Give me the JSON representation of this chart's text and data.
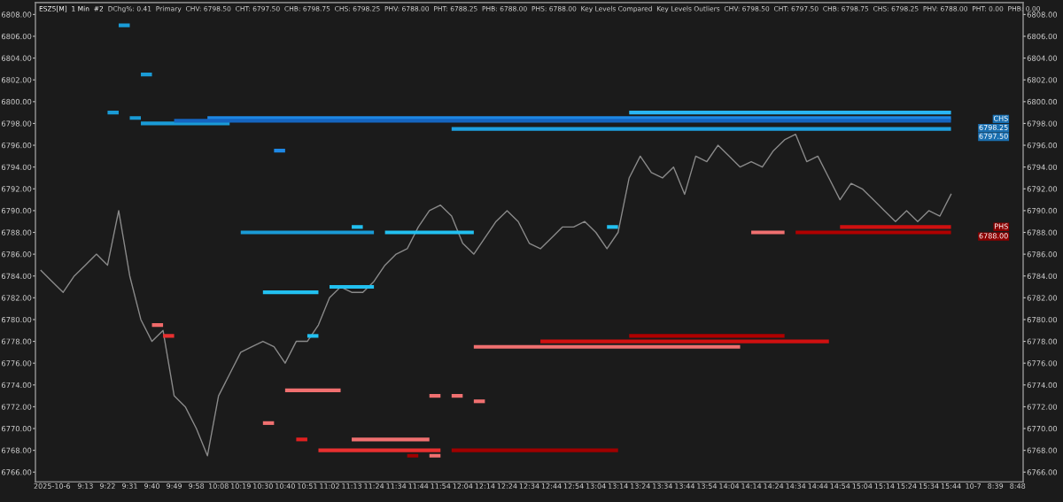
{
  "chart_data": {
    "type": "line",
    "title": "ESZ5[M]  1 Min  #2",
    "subtitle": "DChg%: 0.41  Primary  CHV: 6798.50  CHT: 6797.50  CHB: 6798.75  CHS: 6798.25  PHV: 6788.00  PHT: 6788.25  PHB: 6788.00  PHS: 6788.00  Key Levels Compared  Key Levels Outliers  CHV: 6798.50  CHT: 6797.50  CHB: 6798.75  CHS: 6798.25  PHV: 6788.00  PHT: 0.00  PHB: 0.00",
    "categories": [
      null,
      "2025-10-6",
      null,
      null,
      "9:13",
      null,
      "9:22",
      null,
      "9:31",
      null,
      "9:40",
      null,
      "9:49",
      null,
      "9:58",
      null,
      "10:08",
      null,
      "10:19",
      null,
      "10:30",
      null,
      "10:40",
      null,
      "10:51",
      null,
      "11:02",
      null,
      "11:13",
      null,
      "11:24",
      null,
      "11:34",
      null,
      "11:44",
      null,
      "11:54",
      null,
      "12:04",
      null,
      "12:14",
      null,
      "12:24",
      null,
      "12:34",
      null,
      "12:44",
      null,
      "12:54",
      null,
      "13:04",
      null,
      "13:14",
      null,
      "13:24",
      null,
      "13:34",
      null,
      "13:44",
      null,
      "13:54",
      null,
      "14:04",
      null,
      "14:14",
      null,
      "14:24",
      null,
      "14:34",
      null,
      "14:44",
      null,
      "14:54",
      null,
      "15:04",
      null,
      "15:14",
      null,
      "15:24",
      null,
      "15:34",
      null,
      "15:44",
      null,
      "10-7",
      null,
      "8:39",
      null,
      "8:48"
    ],
    "ylim": [
      6765.1,
      6809.1
    ],
    "y2lim": [
      6765.1,
      6809.1
    ],
    "yticks": [
      {
        "value": 6766,
        "label": "6766.00"
      },
      {
        "value": 6768,
        "label": "6768.00"
      },
      {
        "value": 6770,
        "label": "6770.00"
      },
      {
        "value": 6772,
        "label": "6772.00"
      },
      {
        "value": 6774,
        "label": "6774.00"
      },
      {
        "value": 6776,
        "label": "6776.00"
      },
      {
        "value": 6778,
        "label": "6778.00"
      },
      {
        "value": 6780,
        "label": "6780.00"
      },
      {
        "value": 6782,
        "label": "6782.00"
      },
      {
        "value": 6784,
        "label": "6784.00"
      },
      {
        "value": 6786,
        "label": "6786.00"
      },
      {
        "value": 6788,
        "label": "6788.00"
      },
      {
        "value": 6790,
        "label": "6790.00"
      },
      {
        "value": 6792,
        "label": "6792.00"
      },
      {
        "value": 6794,
        "label": "6794.00"
      },
      {
        "value": 6796,
        "label": "6796.00"
      },
      {
        "value": 6798,
        "label": "6798.00"
      },
      {
        "value": 6800,
        "label": "6800.00"
      },
      {
        "value": 6802,
        "label": "6802.00"
      },
      {
        "value": 6804,
        "label": "6804.00"
      },
      {
        "value": 6806,
        "label": "6806.00"
      },
      {
        "value": 6808,
        "label": "6808.00"
      }
    ],
    "y2ticks": [
      {
        "value": 6766,
        "label": "6766.00"
      },
      {
        "value": 6768,
        "label": "6768.00"
      },
      {
        "value": 6770,
        "label": "6770.00"
      },
      {
        "value": 6772,
        "label": "6772.00"
      },
      {
        "value": 6774,
        "label": "6774.00"
      },
      {
        "value": 6776,
        "label": "6776.00"
      },
      {
        "value": 6778,
        "label": "6778.00"
      },
      {
        "value": 6780,
        "label": "6780.00"
      },
      {
        "value": 6782,
        "label": "6782.00"
      },
      {
        "value": 6784,
        "label": "6784.00"
      },
      {
        "value": 6786,
        "label": "6786.00"
      },
      {
        "value": 6788,
        "label": "6788.00"
      },
      {
        "value": 6790,
        "label": "6790.00"
      },
      {
        "value": 6792,
        "label": "6792.00"
      },
      {
        "value": 6794,
        "label": "6794.00"
      },
      {
        "value": 6796,
        "label": "6796.00"
      },
      {
        "value": 6798,
        "label": "6798.00"
      },
      {
        "value": 6800,
        "label": "6800.00"
      },
      {
        "value": 6802,
        "label": "6802.00"
      },
      {
        "value": 6804,
        "label": "6804.00"
      },
      {
        "value": 6806,
        "label": "6806.00"
      },
      {
        "value": 6808,
        "label": "6808.00"
      }
    ],
    "grid": false,
    "annotations": [
      "CHS",
      "6798.25",
      "6797.50",
      "PHS",
      "6788.00"
    ],
    "series": [
      {
        "color": "#8a8a8a",
        "values": [
          6784.5,
          6783.5,
          6782.5,
          6784,
          6785,
          6786,
          6785,
          6790,
          6784,
          6780,
          6778,
          6779,
          6773,
          6772,
          6770,
          6767.5,
          6773,
          6775,
          6777,
          6777.5,
          6778,
          6777.5,
          6776,
          6778,
          6778,
          6779.5,
          6782,
          6783,
          6782.5,
          6782.5,
          6783.5,
          6785,
          6786,
          6786.5,
          6788.5,
          6790,
          6790.5,
          6789.5,
          6787,
          6786,
          6787.5,
          6789,
          6790,
          6789,
          6787,
          6786.5,
          6787.5,
          6788.5,
          6788.5,
          6789,
          6788,
          6786.5,
          6788,
          6793,
          6795,
          6793.5,
          6793,
          6794,
          6791.5,
          6795,
          6794.5,
          6796,
          6795,
          6794,
          6794.5,
          6794,
          6795.5,
          6796.5,
          6797,
          6794.5,
          6795,
          6793,
          6791,
          6792.5,
          6792,
          6791,
          6790,
          6789,
          6790,
          6789,
          6790,
          6789.5,
          6791.5,
          null,
          null,
          null,
          null,
          null,
          null
        ]
      },
      {
        "type": "step",
        "color": "#1a9bd6",
        "values": [
          null,
          null,
          null,
          null,
          null,
          null,
          null,
          6807,
          6807,
          6798,
          6798,
          6798,
          6798,
          6798,
          6798,
          6798,
          6798,
          6798,
          6788,
          6788,
          6788,
          6788,
          6788,
          6788,
          6788,
          6788,
          6788,
          6788,
          6788,
          6788,
          6788,
          null,
          null,
          null,
          null,
          null,
          null,
          null,
          null,
          null,
          null,
          null,
          null,
          null,
          null,
          null,
          null,
          null,
          null,
          null,
          null,
          null,
          null,
          null,
          null,
          null,
          null,
          null,
          null,
          null,
          null,
          null,
          null,
          null,
          null,
          null,
          null,
          null,
          null,
          null,
          null,
          null,
          null,
          null,
          null,
          null,
          null,
          null,
          null,
          null,
          null,
          null,
          null,
          null,
          null,
          null,
          null,
          null,
          null
        ]
      },
      {
        "type": "step",
        "color": "#1a9bd6",
        "values": [
          null,
          null,
          null,
          null,
          null,
          null,
          6799,
          6799,
          null,
          6802.5,
          6802.5,
          null,
          null,
          null,
          null,
          null,
          null,
          null,
          null,
          null,
          null,
          null,
          null,
          null,
          null,
          null,
          null,
          null,
          null,
          null,
          null,
          null,
          null,
          null,
          null,
          null,
          null,
          null,
          null,
          null,
          null,
          null,
          null,
          null,
          null,
          null,
          null,
          null,
          null,
          null,
          null,
          null,
          null,
          null,
          null,
          null,
          null,
          null,
          null,
          null,
          null,
          null,
          null,
          null,
          null,
          null,
          null,
          null,
          null,
          null,
          null,
          null,
          null,
          null,
          null,
          null,
          null,
          null,
          null,
          null,
          null,
          null,
          null,
          null,
          null,
          null,
          null,
          null,
          null
        ]
      },
      {
        "type": "step",
        "color": "#1a9bd6",
        "values": [
          null,
          null,
          null,
          null,
          null,
          null,
          null,
          null,
          6798.5,
          6798.5,
          null,
          null,
          null,
          null,
          null,
          null,
          null,
          null,
          null,
          null,
          null,
          null,
          null,
          null,
          null,
          null,
          null,
          null,
          null,
          null,
          null,
          null,
          null,
          null,
          null,
          null,
          null,
          null,
          null,
          null,
          null,
          null,
          null,
          null,
          null,
          null,
          null,
          null,
          null,
          null,
          null,
          null,
          null,
          null,
          null,
          null,
          null,
          null,
          null,
          null,
          null,
          null,
          null,
          null,
          null,
          null,
          null,
          null,
          null,
          null,
          null,
          null,
          null,
          null,
          null,
          null,
          null,
          null,
          null,
          null,
          null,
          null,
          null,
          null,
          null,
          null,
          null,
          null,
          null
        ]
      },
      {
        "type": "step",
        "color": "#22c0f0",
        "values": [
          null,
          null,
          null,
          null,
          null,
          null,
          null,
          null,
          null,
          null,
          null,
          null,
          null,
          null,
          null,
          null,
          null,
          null,
          null,
          null,
          6782.5,
          6782.5,
          6782.5,
          6782.5,
          6782.5,
          6782.5,
          6783,
          6783,
          6783,
          6783,
          6783,
          6788,
          6788,
          6788,
          6788,
          6788,
          6788,
          6788,
          6788,
          6788,
          null,
          null,
          null,
          null,
          null,
          null,
          null,
          null,
          null,
          null,
          null,
          6788.5,
          6788.5,
          null,
          null,
          null,
          null,
          null,
          null,
          null,
          null,
          null,
          null,
          null,
          null,
          null,
          null,
          null,
          null,
          null,
          null,
          null,
          null,
          null,
          null,
          null,
          null,
          null,
          null,
          null,
          null,
          null,
          null,
          null,
          null,
          null,
          null,
          null,
          null
        ]
      },
      {
        "type": "step",
        "color": "#22c0f0",
        "values": [
          null,
          null,
          null,
          null,
          null,
          null,
          null,
          null,
          null,
          null,
          null,
          null,
          null,
          null,
          null,
          null,
          null,
          null,
          null,
          null,
          null,
          null,
          null,
          null,
          6778.5,
          6778.5,
          null,
          null,
          6788.5,
          6788.5,
          null,
          null,
          null,
          null,
          null,
          null,
          null,
          null,
          null,
          null,
          null,
          null,
          null,
          null,
          null,
          null,
          null,
          null,
          null,
          null,
          null,
          null,
          null,
          null,
          null,
          null,
          null,
          null,
          null,
          null,
          null,
          null,
          null,
          null,
          null,
          null,
          null,
          null,
          null,
          null,
          null,
          null,
          null,
          null,
          null,
          null,
          null,
          null,
          null,
          null,
          null,
          null,
          null,
          null,
          null,
          null,
          null,
          null,
          null
        ]
      },
      {
        "type": "step",
        "color": "#1e88e5",
        "values": [
          null,
          null,
          null,
          null,
          null,
          null,
          null,
          null,
          null,
          null,
          null,
          null,
          null,
          null,
          null,
          6798.5,
          6798.5,
          6798.5,
          6798.5,
          6798.5,
          6798.5,
          6798.5,
          6798.5,
          6798.5,
          6798.5,
          6798.5,
          6798.5,
          6798.5,
          6798.5,
          6798.5,
          6798.5,
          6798.5,
          6798.5,
          6798.5,
          6798.5,
          6798.5,
          6798.5,
          6798.5,
          6798.5,
          6798.5,
          6798.5,
          6798.5,
          6798.5,
          6798.5,
          6798.5,
          6798.5,
          6798.5,
          6798.5,
          6798.5,
          6798.5,
          6798.5,
          6798.5,
          6798.5,
          6798.5,
          6798.5,
          6798.5,
          6798.5,
          6798.5,
          6798.5,
          6798.5,
          6798.5,
          6798.5,
          6798.5,
          6798.5,
          6798.5,
          6798.5,
          6798.5,
          6798.5,
          6798.5,
          6798.5,
          6798.5,
          6798.5,
          6798.5,
          6798.5,
          6798.5,
          6798.5,
          6798.5,
          6798.5,
          6798.5,
          6798.5,
          6798.5,
          6798.5,
          6798.5,
          null,
          null,
          null,
          null,
          null,
          null
        ]
      },
      {
        "type": "step",
        "color": "#1e88e5",
        "values": [
          null,
          null,
          null,
          null,
          null,
          null,
          null,
          null,
          null,
          null,
          null,
          null,
          null,
          null,
          null,
          null,
          null,
          null,
          null,
          null,
          null,
          6795.5,
          6795.5,
          null,
          null,
          null,
          null,
          null,
          null,
          null,
          null,
          null,
          null,
          null,
          null,
          null,
          null,
          null,
          null,
          null,
          null,
          null,
          null,
          null,
          null,
          null,
          null,
          null,
          null,
          null,
          null,
          null,
          null,
          null,
          null,
          null,
          null,
          null,
          null,
          null,
          null,
          null,
          null,
          null,
          null,
          null,
          null,
          null,
          null,
          null,
          null,
          null,
          null,
          null,
          null,
          null,
          null,
          null,
          null,
          null,
          null,
          null,
          null,
          null,
          null,
          null,
          null,
          null,
          null
        ]
      },
      {
        "type": "step",
        "color": "#1565c0",
        "values": [
          null,
          null,
          null,
          null,
          null,
          null,
          null,
          null,
          null,
          null,
          null,
          null,
          6798.25,
          6798.25,
          6798.25,
          6798.25,
          6798.25,
          6798.25,
          6798.25,
          6798.25,
          6798.25,
          6798.25,
          6798.25,
          6798.25,
          6798.25,
          6798.25,
          6798.25,
          6798.25,
          6798.25,
          6798.25,
          6798.25,
          6798.25,
          6798.25,
          6798.25,
          6798.25,
          6798.25,
          6798.25,
          6798.25,
          6798.25,
          6798.25,
          6798.25,
          6798.25,
          6798.25,
          6798.25,
          6798.25,
          6798.25,
          6798.25,
          6798.25,
          6798.25,
          6798.25,
          6798.25,
          6798.25,
          6798.25,
          6798.25,
          6798.25,
          6798.25,
          6798.25,
          6798.25,
          6798.25,
          6798.25,
          6798.25,
          6798.25,
          6798.25,
          6798.25,
          6798.25,
          6798.25,
          6798.25,
          6798.25,
          6798.25,
          6798.25,
          6798.25,
          6798.25,
          6798.25,
          6798.25,
          6798.25,
          6798.25,
          6798.25,
          6798.25,
          6798.25,
          6798.25,
          6798.25,
          6798.25,
          6798.25,
          null,
          null,
          null,
          null,
          null,
          null
        ]
      },
      {
        "type": "step",
        "color": "#1ea0e0",
        "values": [
          null,
          null,
          null,
          null,
          null,
          null,
          null,
          null,
          null,
          null,
          null,
          null,
          null,
          null,
          null,
          null,
          null,
          null,
          null,
          null,
          null,
          null,
          null,
          null,
          null,
          null,
          null,
          null,
          null,
          null,
          null,
          null,
          null,
          null,
          null,
          null,
          null,
          6797.5,
          6797.5,
          6797.5,
          6797.5,
          6797.5,
          6797.5,
          6797.5,
          6797.5,
          6797.5,
          6797.5,
          6797.5,
          6797.5,
          6797.5,
          6797.5,
          6797.5,
          6797.5,
          6797.5,
          6797.5,
          6797.5,
          6797.5,
          6797.5,
          6797.5,
          6797.5,
          6797.5,
          6797.5,
          6797.5,
          6797.5,
          6797.5,
          6797.5,
          6797.5,
          6797.5,
          6797.5,
          6797.5,
          6797.5,
          6797.5,
          6797.5,
          6797.5,
          6797.5,
          6797.5,
          6797.5,
          6797.5,
          6797.5,
          6797.5,
          6797.5,
          6797.5,
          6797.5,
          null,
          null,
          null,
          null,
          null,
          null
        ]
      },
      {
        "type": "step",
        "color": "#29b6f6",
        "values": [
          null,
          null,
          null,
          null,
          null,
          null,
          null,
          null,
          null,
          null,
          null,
          null,
          null,
          null,
          null,
          null,
          null,
          null,
          null,
          null,
          null,
          null,
          null,
          null,
          null,
          null,
          null,
          null,
          null,
          null,
          null,
          null,
          null,
          null,
          null,
          null,
          null,
          null,
          null,
          null,
          null,
          null,
          null,
          null,
          null,
          null,
          null,
          null,
          null,
          null,
          null,
          null,
          null,
          6799,
          6799,
          6799,
          6799,
          6799,
          6799,
          6799,
          6799,
          6799,
          6799,
          6799,
          6799,
          6799,
          6799,
          6799,
          6799,
          6799,
          6799,
          6799,
          6799,
          6799,
          6799,
          6799,
          6799,
          6799,
          6799,
          6799,
          6799,
          6799,
          6799,
          null,
          null,
          null,
          null,
          null,
          null
        ]
      },
      {
        "type": "step",
        "color": "#e83030",
        "values": [
          null,
          null,
          null,
          null,
          null,
          null,
          null,
          null,
          null,
          null,
          null,
          6778.5,
          6778.5,
          null,
          null,
          null,
          null,
          null,
          null,
          null,
          null,
          null,
          null,
          null,
          null,
          6768,
          6768,
          6768,
          6768,
          6768,
          6768,
          6768,
          6768,
          6768,
          6768,
          6768,
          6768,
          null,
          null,
          null,
          null,
          null,
          null,
          null,
          null,
          null,
          null,
          null,
          null,
          null,
          null,
          null,
          null,
          null,
          null,
          null,
          null,
          null,
          null,
          null,
          null,
          null,
          null,
          null,
          null,
          null,
          null,
          null,
          null,
          null,
          null,
          null,
          null,
          null,
          null,
          null,
          null,
          null,
          null,
          null,
          null,
          null,
          null,
          null,
          null,
          null,
          null,
          null,
          null
        ]
      },
      {
        "type": "step",
        "color": "#f07070",
        "values": [
          null,
          null,
          null,
          null,
          null,
          null,
          null,
          null,
          null,
          null,
          null,
          null,
          null,
          null,
          null,
          null,
          null,
          null,
          null,
          null,
          null,
          null,
          6773.5,
          6773.5,
          6773.5,
          6773.5,
          6773.5,
          6773.5,
          6769,
          6769,
          6769,
          6769,
          6769,
          6769,
          6769,
          6769,
          null,
          6773,
          6773,
          6777.5,
          6777.5,
          6777.5,
          6777.5,
          6777.5,
          6777.5,
          6777.5,
          6777.5,
          6777.5,
          6777.5,
          6777.5,
          6777.5,
          6777.5,
          6777.5,
          6777.5,
          6777.5,
          6777.5,
          6777.5,
          6777.5,
          6777.5,
          6777.5,
          6777.5,
          6777.5,
          6777.5,
          6777.5,
          6788,
          6788,
          6788,
          6788,
          null,
          null,
          null,
          null,
          null,
          null,
          null,
          null,
          null,
          null,
          null,
          null,
          null,
          null,
          null,
          null,
          null,
          null,
          null,
          null,
          null
        ]
      },
      {
        "type": "step",
        "color": "#f07070",
        "values": [
          null,
          null,
          null,
          null,
          null,
          null,
          null,
          null,
          null,
          null,
          null,
          null,
          null,
          null,
          null,
          null,
          null,
          null,
          null,
          null,
          6770.5,
          6770.5,
          null,
          null,
          null,
          null,
          null,
          null,
          null,
          null,
          null,
          null,
          null,
          null,
          null,
          6773,
          6773,
          null,
          null,
          6772.5,
          6772.5,
          null,
          null,
          null,
          null,
          null,
          null,
          null,
          null,
          null,
          null,
          null,
          null,
          null,
          null,
          null,
          null,
          null,
          null,
          null,
          null,
          null,
          null,
          null,
          null,
          null,
          null,
          null,
          null,
          null,
          null,
          null,
          null,
          null,
          null,
          null,
          null,
          null,
          null,
          null,
          null,
          null,
          null,
          null,
          null,
          null,
          null,
          null,
          null
        ]
      },
      {
        "type": "step",
        "color": "#f07070",
        "values": [
          null,
          null,
          null,
          null,
          null,
          null,
          null,
          null,
          null,
          null,
          null,
          null,
          null,
          null,
          null,
          null,
          null,
          null,
          null,
          null,
          null,
          null,
          null,
          null,
          null,
          null,
          null,
          null,
          null,
          null,
          null,
          null,
          null,
          null,
          null,
          6767.5,
          6767.5,
          null,
          null,
          null,
          null,
          null,
          null,
          null,
          null,
          null,
          null,
          null,
          null,
          null,
          null,
          null,
          null,
          null,
          null,
          null,
          null,
          null,
          null,
          null,
          null,
          null,
          null,
          null,
          null,
          null,
          null,
          null,
          null,
          null,
          null,
          null,
          null,
          null,
          null,
          null,
          null,
          null,
          null,
          null,
          null,
          null,
          null,
          null,
          null,
          null,
          null,
          null,
          null
        ]
      },
      {
        "type": "step",
        "color": "#f06a6a",
        "values": [
          null,
          null,
          null,
          null,
          null,
          null,
          null,
          null,
          null,
          null,
          6779.5,
          6779.5,
          null,
          null,
          null,
          null,
          null,
          null,
          null,
          null,
          null,
          null,
          null,
          null,
          null,
          null,
          null,
          null,
          null,
          null,
          null,
          null,
          null,
          null,
          null,
          null,
          null,
          null,
          null,
          null,
          null,
          null,
          null,
          null,
          null,
          null,
          null,
          null,
          null,
          null,
          null,
          null,
          null,
          null,
          null,
          null,
          null,
          null,
          null,
          null,
          null,
          null,
          null,
          null,
          null,
          null,
          null,
          null,
          null,
          null,
          null,
          null,
          null,
          null,
          null,
          null,
          null,
          null,
          null,
          null,
          null,
          null,
          null,
          null,
          null,
          null,
          null,
          null,
          null
        ]
      },
      {
        "type": "step",
        "color": "#a00000",
        "values": [
          null,
          null,
          null,
          null,
          null,
          null,
          null,
          null,
          null,
          null,
          null,
          null,
          null,
          null,
          null,
          null,
          null,
          null,
          null,
          null,
          null,
          null,
          null,
          null,
          null,
          null,
          null,
          null,
          null,
          null,
          null,
          null,
          null,
          6767.5,
          6767.5,
          null,
          null,
          6768,
          6768,
          6768,
          6768,
          6768,
          6768,
          6768,
          6768,
          6768,
          6768,
          6768,
          6768,
          6768,
          6768,
          6768,
          6768,
          null,
          null,
          null,
          null,
          null,
          null,
          null,
          null,
          null,
          null,
          null,
          null,
          null,
          null,
          null,
          null,
          null,
          null,
          null,
          null,
          null,
          null,
          null,
          null,
          null,
          null,
          null,
          null,
          null,
          null,
          null,
          null,
          null,
          null,
          null,
          null
        ]
      },
      {
        "type": "step",
        "color": "#b00000",
        "values": [
          null,
          null,
          null,
          null,
          null,
          null,
          null,
          null,
          null,
          null,
          null,
          null,
          null,
          null,
          null,
          null,
          null,
          null,
          null,
          null,
          null,
          null,
          null,
          null,
          null,
          null,
          null,
          null,
          null,
          null,
          null,
          null,
          null,
          null,
          null,
          null,
          null,
          null,
          null,
          null,
          null,
          null,
          null,
          null,
          null,
          null,
          null,
          null,
          null,
          null,
          null,
          null,
          null,
          6778.5,
          6778.5,
          6778.5,
          6778.5,
          6778.5,
          6778.5,
          6778.5,
          6778.5,
          6778.5,
          6778.5,
          6778.5,
          6778.5,
          6778.5,
          6778.5,
          6778.5,
          6788,
          6788,
          6788,
          6788,
          6788,
          6788,
          6788,
          6788,
          6788,
          6788,
          6788,
          6788,
          6788,
          6788,
          6788,
          null,
          null,
          null,
          null,
          null,
          null
        ]
      },
      {
        "type": "step",
        "color": "#d01010",
        "values": [
          null,
          null,
          null,
          null,
          null,
          null,
          null,
          null,
          null,
          null,
          null,
          null,
          null,
          null,
          null,
          null,
          null,
          null,
          null,
          null,
          null,
          null,
          null,
          null,
          null,
          null,
          null,
          null,
          null,
          null,
          null,
          null,
          null,
          null,
          null,
          null,
          null,
          null,
          null,
          null,
          null,
          null,
          null,
          null,
          null,
          6778,
          6778,
          6778,
          6778,
          6778,
          6778,
          6778,
          6778,
          6778,
          6778,
          6778,
          6778,
          6778,
          6778,
          6778,
          6778,
          6778,
          6778,
          6778,
          6778,
          6778,
          6778,
          6778,
          6778,
          6778,
          6778,
          6778,
          6788.5,
          6788.5,
          6788.5,
          6788.5,
          6788.5,
          6788.5,
          6788.5,
          6788.5,
          6788.5,
          6788.5,
          6788.5,
          null,
          null,
          null,
          null,
          null,
          null
        ]
      },
      {
        "type": "step",
        "color": "#e02020",
        "values": [
          null,
          null,
          null,
          null,
          null,
          null,
          null,
          null,
          null,
          null,
          null,
          null,
          null,
          null,
          null,
          null,
          null,
          null,
          null,
          null,
          null,
          null,
          null,
          6769,
          6769,
          null,
          null,
          null,
          null,
          null,
          null,
          null,
          null,
          null,
          null,
          null,
          null,
          null,
          null,
          null,
          null,
          null,
          null,
          null,
          null,
          null,
          null,
          null,
          null,
          null,
          null,
          null,
          null,
          null,
          null,
          null,
          null,
          null,
          null,
          null,
          null,
          null,
          null,
          null,
          null,
          null,
          null,
          null,
          null,
          null,
          null,
          null,
          null,
          null,
          null,
          null,
          null,
          null,
          null,
          null,
          null,
          null,
          null,
          null,
          null,
          null,
          null,
          null,
          null
        ]
      }
    ]
  }
}
